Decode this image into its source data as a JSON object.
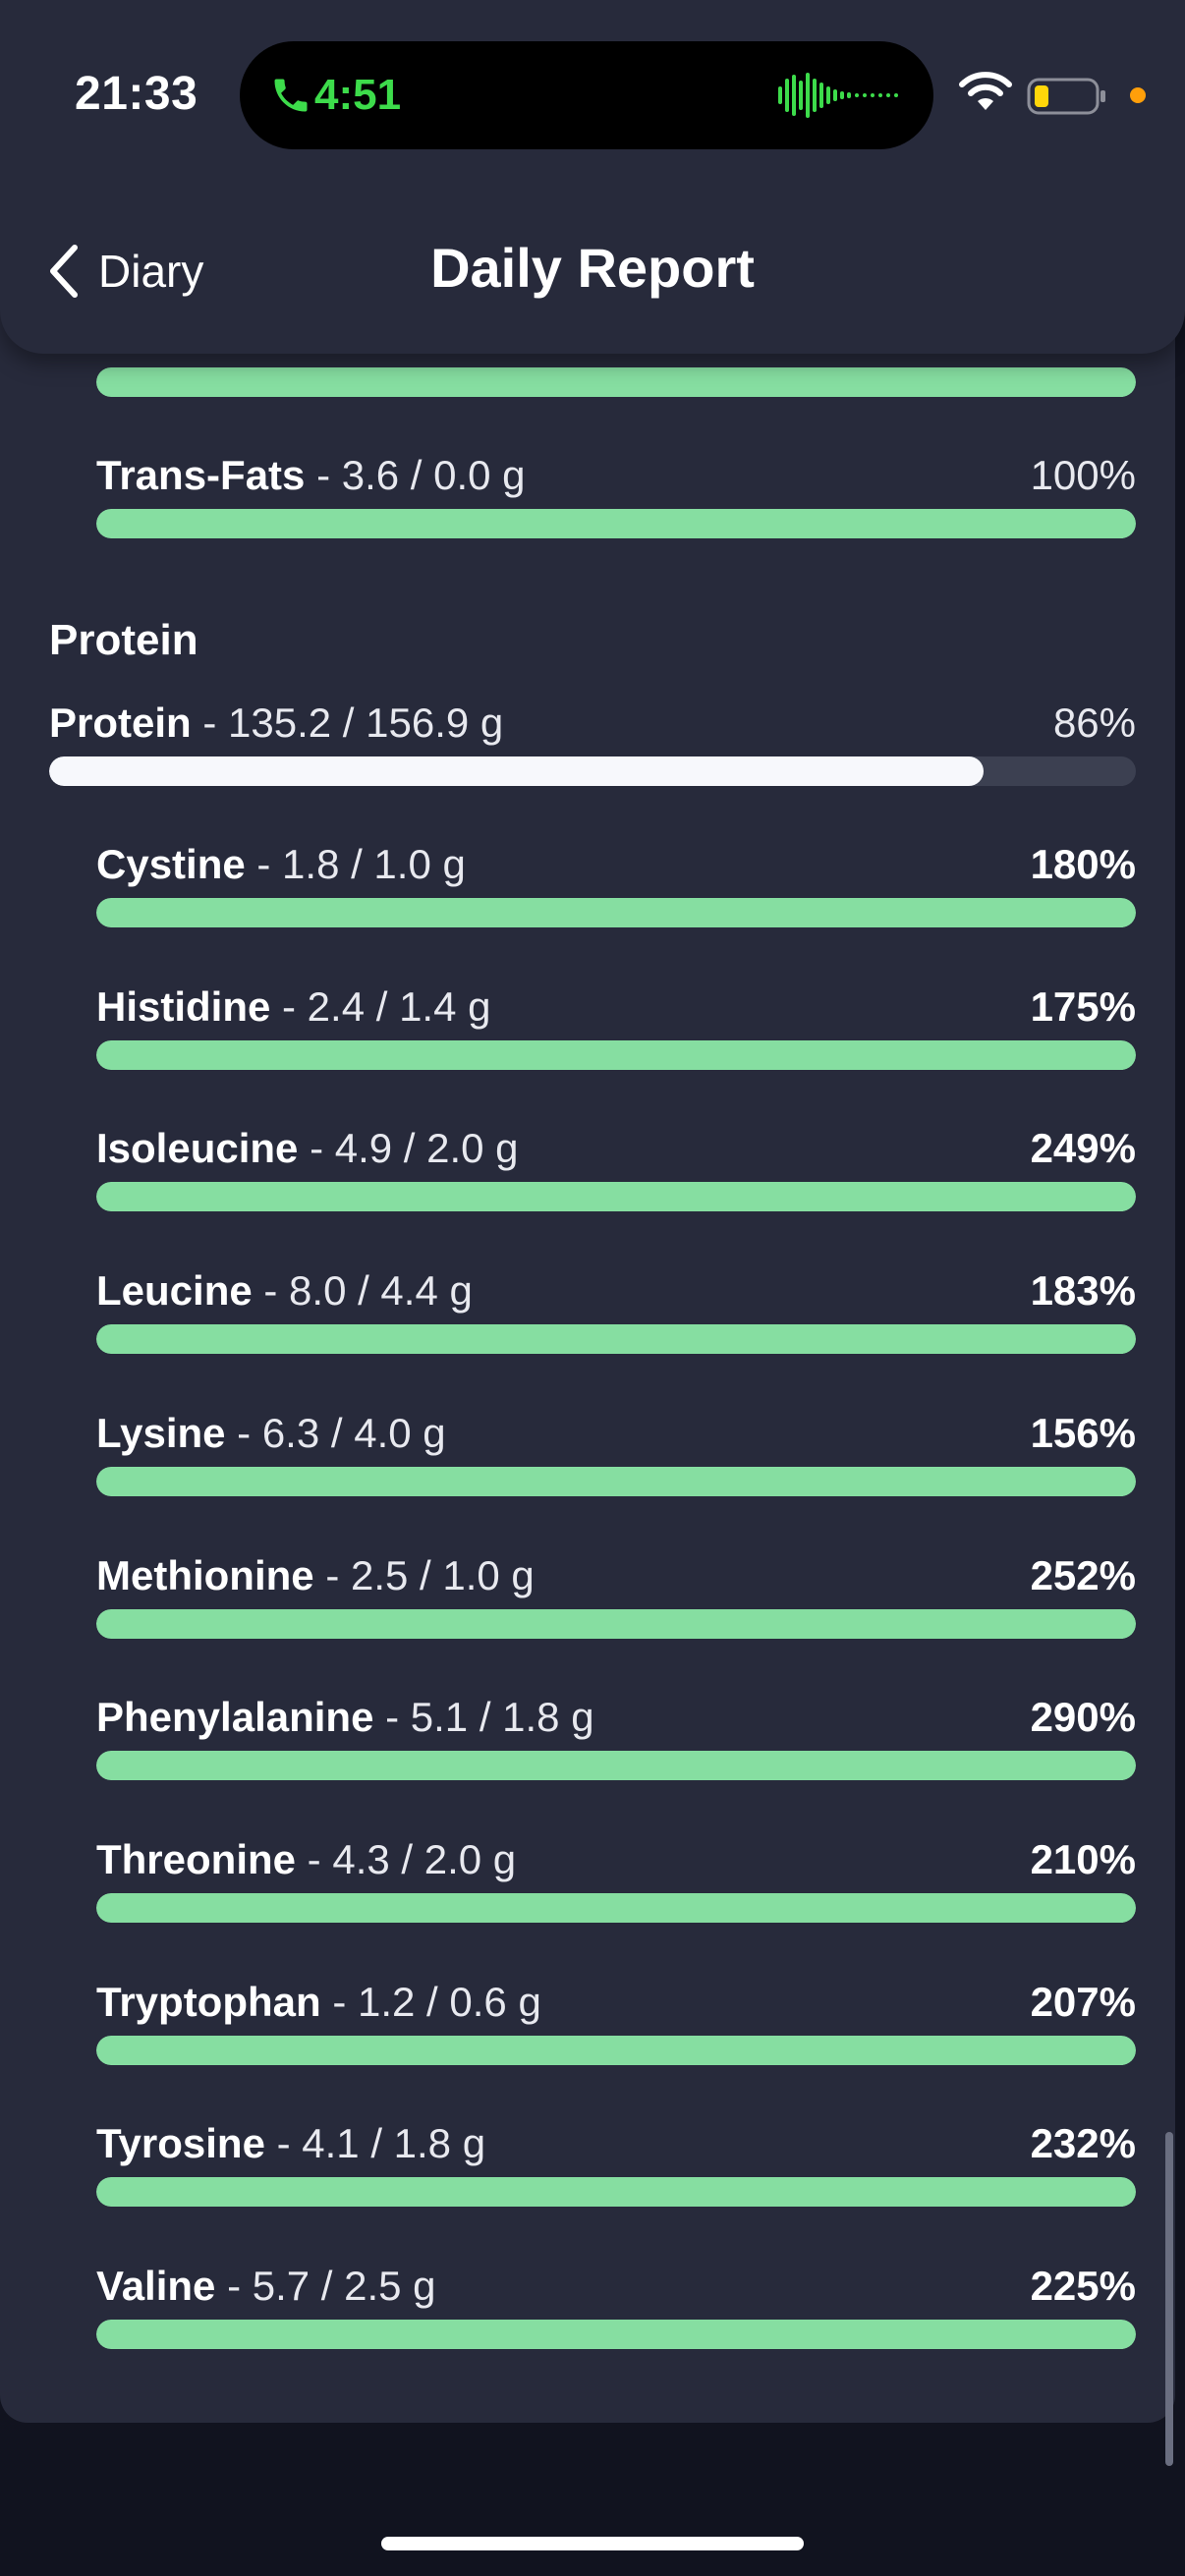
{
  "status_bar": {
    "time": "21:33",
    "call_timer": "4:51",
    "call_color": "#3ddc4b",
    "battery_color": "#ffd60a",
    "privacy_dot_color": "#ff9f0a"
  },
  "nav": {
    "back_label": "Diary",
    "title": "Daily Report"
  },
  "colors": {
    "card_bg": "#272a3b",
    "bar_green": "#86dea1",
    "bar_white": "#f7f8fc",
    "track": "#3c4051"
  },
  "fats_partial": {
    "name": "Trans-Fats",
    "amount": " - 3.6 / 0.0 g",
    "percent": "100%",
    "fill": 1.0
  },
  "protein_section": {
    "title": "Protein",
    "main": {
      "name": "Protein",
      "amount": " - 135.2 / 156.9 g",
      "percent": "86%",
      "fill": 0.86
    },
    "amino_acids": [
      {
        "name": "Cystine",
        "amount": " - 1.8 / 1.0 g",
        "percent": "180%",
        "fill": 1.0
      },
      {
        "name": "Histidine",
        "amount": " - 2.4 / 1.4 g",
        "percent": "175%",
        "fill": 1.0
      },
      {
        "name": "Isoleucine",
        "amount": " - 4.9 / 2.0 g",
        "percent": "249%",
        "fill": 1.0
      },
      {
        "name": "Leucine",
        "amount": " - 8.0 / 4.4 g",
        "percent": "183%",
        "fill": 1.0
      },
      {
        "name": "Lysine",
        "amount": " - 6.3 / 4.0 g",
        "percent": "156%",
        "fill": 1.0
      },
      {
        "name": "Methionine",
        "amount": " - 2.5 / 1.0 g",
        "percent": "252%",
        "fill": 1.0
      },
      {
        "name": "Phenylalanine",
        "amount": " - 5.1 / 1.8 g",
        "percent": "290%",
        "fill": 1.0
      },
      {
        "name": "Threonine",
        "amount": " - 4.3 / 2.0 g",
        "percent": "210%",
        "fill": 1.0
      },
      {
        "name": "Tryptophan",
        "amount": " - 1.2 / 0.6 g",
        "percent": "207%",
        "fill": 1.0
      },
      {
        "name": "Tyrosine",
        "amount": " - 4.1 / 1.8 g",
        "percent": "232%",
        "fill": 1.0
      },
      {
        "name": "Valine",
        "amount": " - 5.7 / 2.5 g",
        "percent": "225%",
        "fill": 1.0
      }
    ]
  }
}
